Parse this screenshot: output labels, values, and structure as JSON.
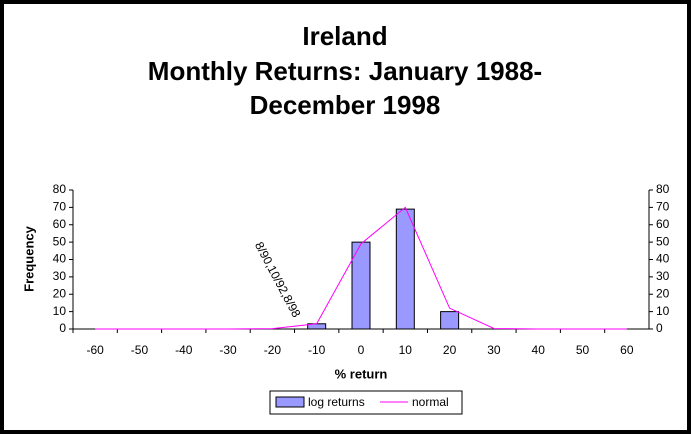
{
  "chart_data": {
    "type": "bar",
    "title": [
      "Ireland",
      "Monthly Returns: January 1988-",
      "December 1998"
    ],
    "x_label": "% return",
    "y_label": "Frequency",
    "annotation": "8/90,10/92,8/98",
    "categories": [
      -60,
      -50,
      -40,
      -30,
      -20,
      -10,
      0,
      10,
      20,
      30,
      40,
      50,
      60
    ],
    "series": [
      {
        "name": "log returns",
        "type": "bar",
        "color": "#9999ff",
        "values": [
          0,
          0,
          0,
          0,
          0,
          3,
          50,
          69,
          10,
          0,
          0,
          0,
          0
        ]
      },
      {
        "name": "normal",
        "type": "line",
        "color": "#ff00ff",
        "values": [
          0,
          0,
          0,
          0,
          0.2,
          3,
          49,
          70,
          12,
          0.3,
          0,
          0,
          0
        ]
      }
    ],
    "ylim": [
      0,
      80
    ],
    "yticks": [
      0,
      10,
      20,
      30,
      40,
      50,
      60,
      70,
      80
    ],
    "y2lim": [
      0,
      80
    ],
    "y2ticks": [
      0,
      10,
      20,
      30,
      40,
      50,
      60,
      70,
      80
    ],
    "legend": "bottom"
  }
}
